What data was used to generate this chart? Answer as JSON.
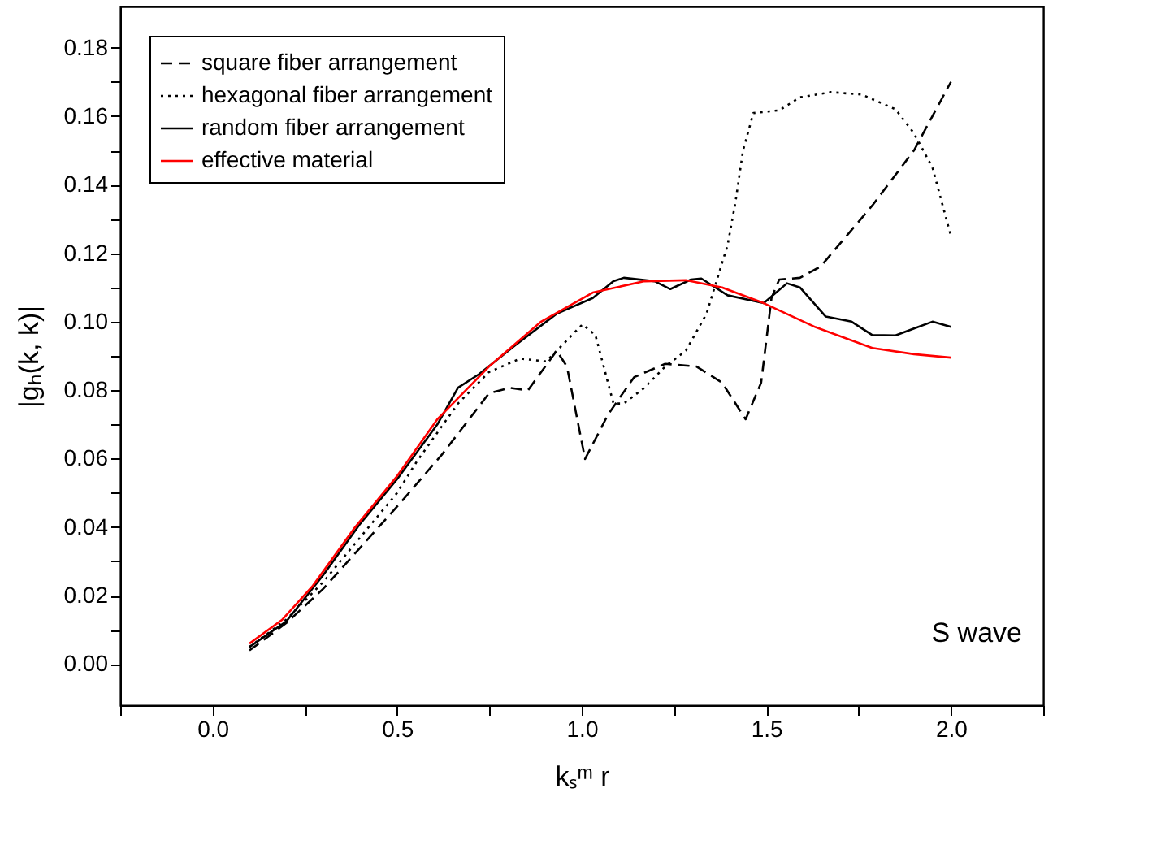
{
  "chart_data": {
    "type": "line",
    "xlabel": "kₛᵐ r",
    "ylabel": "|gₕ(k, k)|",
    "xlim": [
      -0.25,
      2.25
    ],
    "ylim": [
      -0.012,
      0.192
    ],
    "xticks": [
      {
        "value": -0.25,
        "label": null
      },
      {
        "value": 0,
        "label": "0.0"
      },
      {
        "value": 0.25,
        "label": null
      },
      0.5,
      {
        "value": 0.75,
        "label": null
      },
      {
        "value": 1,
        "label": "1.0"
      },
      {
        "value": 1.25,
        "label": null
      },
      1.5,
      {
        "value": 1.75,
        "label": null
      },
      {
        "value": 2,
        "label": "2.0"
      },
      {
        "value": 2.25,
        "label": null
      }
    ],
    "yticks": [
      {
        "value": 0,
        "label": "0.00"
      },
      {
        "value": 0.01,
        "label": null
      },
      {
        "value": 0.02,
        "label": "0.02"
      },
      {
        "value": 0.03,
        "label": null
      },
      {
        "value": 0.04,
        "label": "0.04"
      },
      {
        "value": 0.05,
        "label": null
      },
      {
        "value": 0.06,
        "label": "0.06"
      },
      {
        "value": 0.07,
        "label": null
      },
      {
        "value": 0.08,
        "label": "0.08"
      },
      {
        "value": 0.09,
        "label": null
      },
      {
        "value": 0.1,
        "label": "0.10"
      },
      {
        "value": 0.11,
        "label": null
      },
      {
        "value": 0.12,
        "label": "0.12"
      },
      {
        "value": 0.13,
        "label": null
      },
      {
        "value": 0.14,
        "label": "0.14"
      },
      {
        "value": 0.15,
        "label": null
      },
      {
        "value": 0.16,
        "label": "0.16"
      },
      {
        "value": 0.17,
        "label": null
      },
      {
        "value": 0.18,
        "label": "0.18"
      }
    ],
    "grid": false,
    "legend": "top left",
    "marker": "none",
    "annotations": [
      "S wave"
    ],
    "series": [
      {
        "name": "square fiber arrangement",
        "color": "#000000",
        "line_style": "dashed",
        "x": [
          0.1,
          0.2,
          0.3,
          0.4,
          0.5,
          0.623,
          0.749,
          0.805,
          0.854,
          0.932,
          0.96,
          1.009,
          1.072,
          1.142,
          1.226,
          1.311,
          1.38,
          1.444,
          1.486,
          1.514,
          1.535,
          1.591,
          1.647,
          1.787,
          1.9,
          1.95,
          2.0
        ],
        "values": [
          0.004,
          0.012,
          0.022,
          0.034,
          0.046,
          0.0614,
          0.0791,
          0.0807,
          0.0799,
          0.0915,
          0.0869,
          0.0599,
          0.073,
          0.0838,
          0.0877,
          0.0869,
          0.0822,
          0.0715,
          0.0822,
          0.1069,
          0.1123,
          0.1128,
          0.1161,
          0.1339,
          0.15,
          0.16,
          0.17
        ]
      },
      {
        "name": "hexagonal fiber arrangement",
        "color": "#000000",
        "line_style": "dotted",
        "x": [
          0.1,
          0.2,
          0.3,
          0.4,
          0.5,
          0.553,
          0.665,
          0.749,
          0.833,
          0.904,
          0.946,
          1.002,
          1.037,
          1.086,
          1.114,
          1.17,
          1.226,
          1.282,
          1.338,
          1.395,
          1.416,
          1.437,
          1.465,
          1.535,
          1.591,
          1.675,
          1.759,
          1.85,
          1.9,
          1.95,
          2.0
        ],
        "values": [
          0.005,
          0.013,
          0.024,
          0.037,
          0.05,
          0.0591,
          0.0761,
          0.0853,
          0.0892,
          0.0884,
          0.093,
          0.0992,
          0.0961,
          0.0761,
          0.0761,
          0.0807,
          0.0869,
          0.0915,
          0.1023,
          0.1223,
          0.1346,
          0.15,
          0.1609,
          0.1617,
          0.1655,
          0.167,
          0.1663,
          0.162,
          0.155,
          0.145,
          0.125
        ]
      },
      {
        "name": "random fiber arrangement",
        "color": "#000000",
        "line_style": "solid",
        "x": [
          0.1,
          0.2,
          0.3,
          0.4,
          0.5,
          0.609,
          0.665,
          0.721,
          0.819,
          0.932,
          1.03,
          1.086,
          1.114,
          1.198,
          1.24,
          1.296,
          1.324,
          1.395,
          1.493,
          1.556,
          1.591,
          1.661,
          1.731,
          1.787,
          1.85,
          1.9,
          1.95,
          2.0
        ],
        "values": [
          0.005,
          0.0125,
          0.026,
          0.041,
          0.054,
          0.07,
          0.0807,
          0.0846,
          0.093,
          0.1023,
          0.1069,
          0.1118,
          0.1128,
          0.1118,
          0.1095,
          0.1123,
          0.1126,
          0.1077,
          0.1054,
          0.1112,
          0.11,
          0.1015,
          0.1,
          0.0961,
          0.096,
          0.098,
          0.1,
          0.0985
        ]
      },
      {
        "name": "effective material",
        "color": "#ff0000",
        "line_style": "solid",
        "x": [
          0.1,
          0.188,
          0.272,
          0.385,
          0.497,
          0.609,
          0.749,
          0.89,
          1.03,
          1.17,
          1.282,
          1.38,
          1.493,
          1.633,
          1.787,
          1.9,
          2.0
        ],
        "values": [
          0.006,
          0.0129,
          0.0229,
          0.0398,
          0.0545,
          0.0715,
          0.0869,
          0.1,
          0.1085,
          0.1118,
          0.1121,
          0.11,
          0.1054,
          0.0984,
          0.0923,
          0.0905,
          0.0895
        ]
      }
    ]
  }
}
